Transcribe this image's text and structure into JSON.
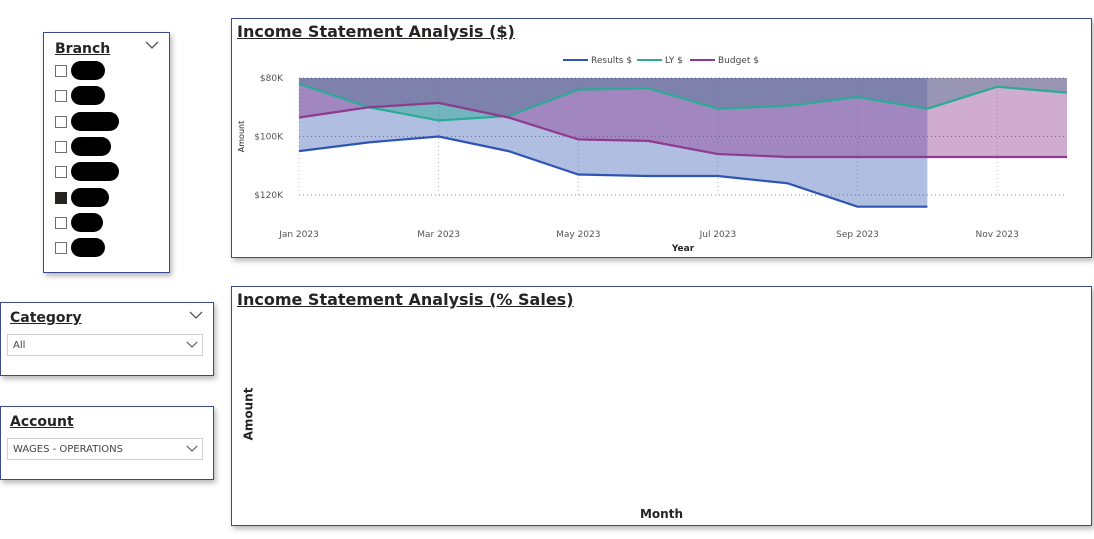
{
  "branch_slicer": {
    "title": "Branch",
    "items": [
      {
        "checked": false
      },
      {
        "checked": false
      },
      {
        "checked": false
      },
      {
        "checked": false
      },
      {
        "checked": false
      },
      {
        "checked": true
      },
      {
        "checked": false
      },
      {
        "checked": false
      }
    ]
  },
  "category_slicer": {
    "title": "Category",
    "value": "All"
  },
  "account_slicer": {
    "title": "Account",
    "value": "WAGES - OPERATIONS"
  },
  "chart1": {
    "title": "Income Statement Analysis ($)",
    "chart_data": {
      "type": "area",
      "title": "Income Statement Analysis ($)",
      "xlabel": "Year",
      "ylabel": "Amount",
      "y_tick_labels": [
        "$80K",
        "$100K",
        "$120K"
      ],
      "x_tick_labels": [
        "Jan 2023",
        "Mar 2023",
        "May 2023",
        "Jul 2023",
        "Sep 2023",
        "Nov 2023"
      ],
      "y_axis_inverted": true,
      "ylim": [
        80000,
        120000
      ],
      "x": [
        "Jan 2023",
        "Feb 2023",
        "Mar 2023",
        "Apr 2023",
        "May 2023",
        "Jun 2023",
        "Jul 2023",
        "Aug 2023",
        "Sep 2023",
        "Oct 2023",
        "Nov 2023",
        "Dec 2023"
      ],
      "series": [
        {
          "name": "Results $",
          "color": "#2f55b4",
          "values": [
            105000,
            102000,
            100000,
            105000,
            113000,
            113500,
            113500,
            116000,
            124000,
            124000,
            null,
            null
          ]
        },
        {
          "name": "LY $",
          "color": "#2bab95",
          "values": [
            82000,
            90000,
            94500,
            93000,
            84000,
            83500,
            90500,
            89500,
            86500,
            90500,
            83000,
            85000
          ]
        },
        {
          "name": "Budget $",
          "color": "#8e3a8e",
          "values": [
            93500,
            90000,
            88500,
            93500,
            101000,
            101500,
            106000,
            107000,
            107000,
            107000,
            107000,
            107000
          ]
        }
      ],
      "legend_position": "top-center",
      "grid": true
    }
  },
  "chart2": {
    "title": "Income Statement Analysis (% Sales)",
    "ylabel": "Amount",
    "xlabel": "Month"
  }
}
